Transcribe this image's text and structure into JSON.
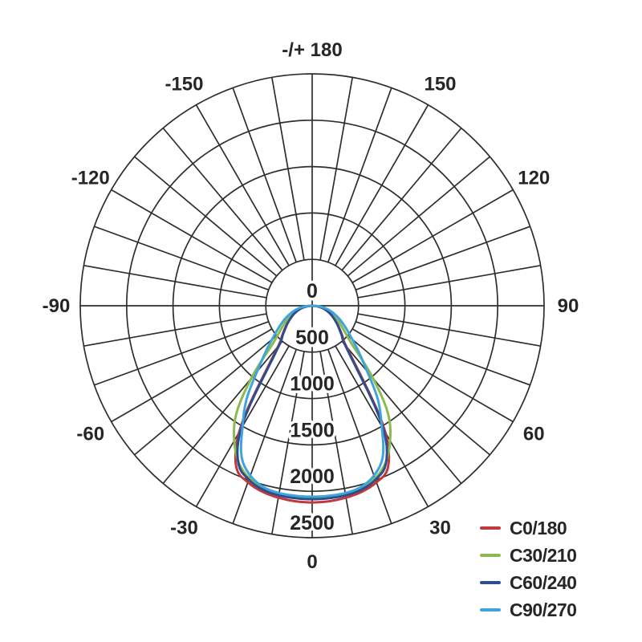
{
  "chart_data": {
    "type": "line",
    "subtype": "polar-photometric-distribution",
    "title": "",
    "orientation": {
      "zero_angle_position": "bottom",
      "positive_direction": "clockwise",
      "angle_unit": "deg"
    },
    "angle_axis": {
      "top_label": "-/+ 180",
      "label_step_deg": 30,
      "spoke_step_deg": 10,
      "labels": [
        {
          "angle": 0,
          "text": "0"
        },
        {
          "angle": 30,
          "text": "30"
        },
        {
          "angle": 60,
          "text": "60"
        },
        {
          "angle": 90,
          "text": "90"
        },
        {
          "angle": 120,
          "text": "120"
        },
        {
          "angle": 150,
          "text": "150"
        },
        {
          "angle": 180,
          "text": "-/+ 180"
        },
        {
          "angle": -150,
          "text": "-150"
        },
        {
          "angle": -120,
          "text": "-120"
        },
        {
          "angle": -90,
          "text": "-90"
        },
        {
          "angle": -60,
          "text": "-60"
        },
        {
          "angle": -30,
          "text": "-30"
        }
      ]
    },
    "radial_axis": {
      "ticks": [
        0,
        500,
        1000,
        1500,
        2000,
        2500
      ],
      "min": 0,
      "max": 2500,
      "ring_step": 500,
      "tick_label_position": "along-bottom-vertical"
    },
    "grid": {
      "rings_on": true,
      "spokes_on": true,
      "color": "#2e2e2e"
    },
    "legend_position": "bottom-right",
    "knot_angles_deg": [
      0,
      5,
      10,
      15,
      20,
      25,
      30,
      35,
      40,
      45,
      50,
      55,
      60,
      65,
      70,
      75,
      80,
      85,
      90
    ],
    "series": [
      {
        "name": "C0/180",
        "color": "#c0393b",
        "symmetric": true,
        "values": [
          2120,
          2115,
          2100,
          2075,
          2025,
          1930,
          1580,
          900,
          570,
          460,
          385,
          325,
          272,
          225,
          180,
          138,
          92,
          46,
          0
        ]
      },
      {
        "name": "C30/210",
        "color": "#8cba50",
        "symmetric": true,
        "values": [
          2075,
          2072,
          2065,
          2042,
          1980,
          1870,
          1680,
          1430,
          1020,
          640,
          480,
          390,
          320,
          258,
          203,
          152,
          102,
          51,
          0
        ]
      },
      {
        "name": "C60/240",
        "color": "#2e4d8e",
        "symmetric": true,
        "values": [
          2085,
          2082,
          2075,
          2052,
          1995,
          1880,
          1540,
          860,
          550,
          450,
          378,
          320,
          268,
          222,
          178,
          135,
          90,
          45,
          0
        ]
      },
      {
        "name": "C90/270",
        "color": "#3fa3dc",
        "symmetric": true,
        "values": [
          2058,
          2056,
          2050,
          2024,
          1948,
          1800,
          1500,
          1235,
          920,
          715,
          565,
          462,
          383,
          315,
          252,
          196,
          138,
          70,
          0
        ]
      }
    ]
  }
}
